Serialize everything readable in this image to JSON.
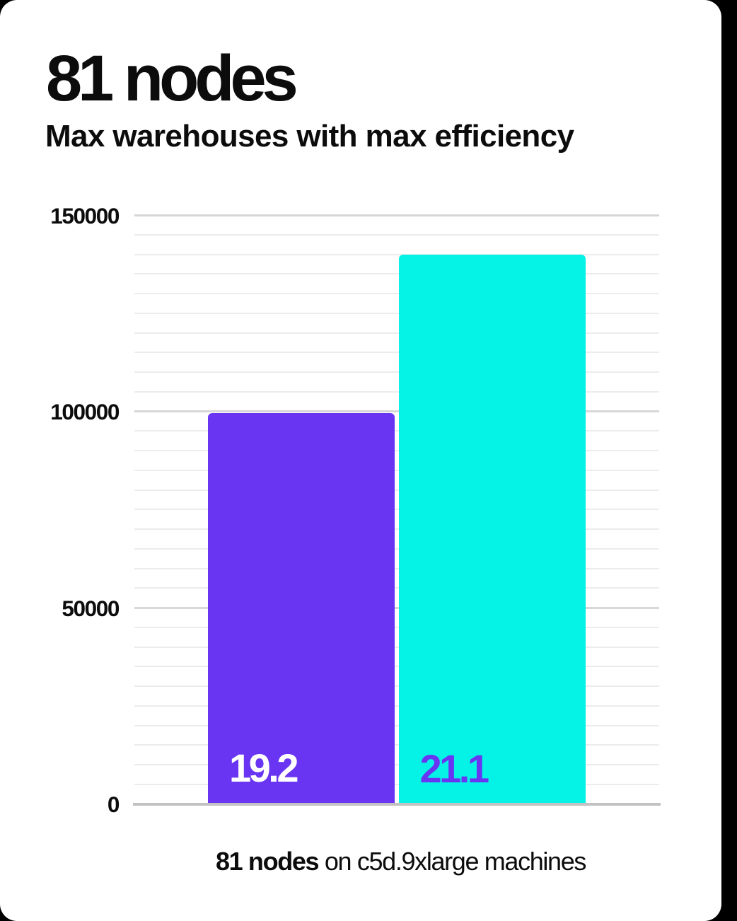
{
  "page": {
    "background_color": "#000000",
    "card_color": "#ffffff"
  },
  "header": {
    "title": "81 nodes",
    "subtitle": "Max warehouses with max efficiency"
  },
  "chart_data": {
    "type": "bar",
    "title": "81 nodes",
    "subtitle": "Max warehouses with max efficiency",
    "categories": [
      "19.2",
      "21.1"
    ],
    "values": [
      99500,
      140000
    ],
    "bar_labels": [
      "19.2",
      "21.1"
    ],
    "bar_colors": [
      "#6935f2",
      "#05f2e6"
    ],
    "bar_label_colors": [
      "#ffffff",
      "#6935f2"
    ],
    "ylim": [
      0,
      150000
    ],
    "yticks": [
      0,
      50000,
      100000,
      150000
    ],
    "ytick_labels": [
      "0",
      "50000",
      "100000",
      "150000"
    ],
    "minor_grid_step": 5000,
    "major_grid_step": 50000,
    "grid": "horizontal-only",
    "legend": "none",
    "xlabel": "81 nodes on c5d.9xlarge machines",
    "grid_minor_color": "#ececec",
    "grid_major_color": "#d7d7d7",
    "axis_line_color": "#c2c2c2"
  },
  "caption": {
    "bold": "81 nodes",
    "rest": " on c5d.9xlarge machines"
  }
}
